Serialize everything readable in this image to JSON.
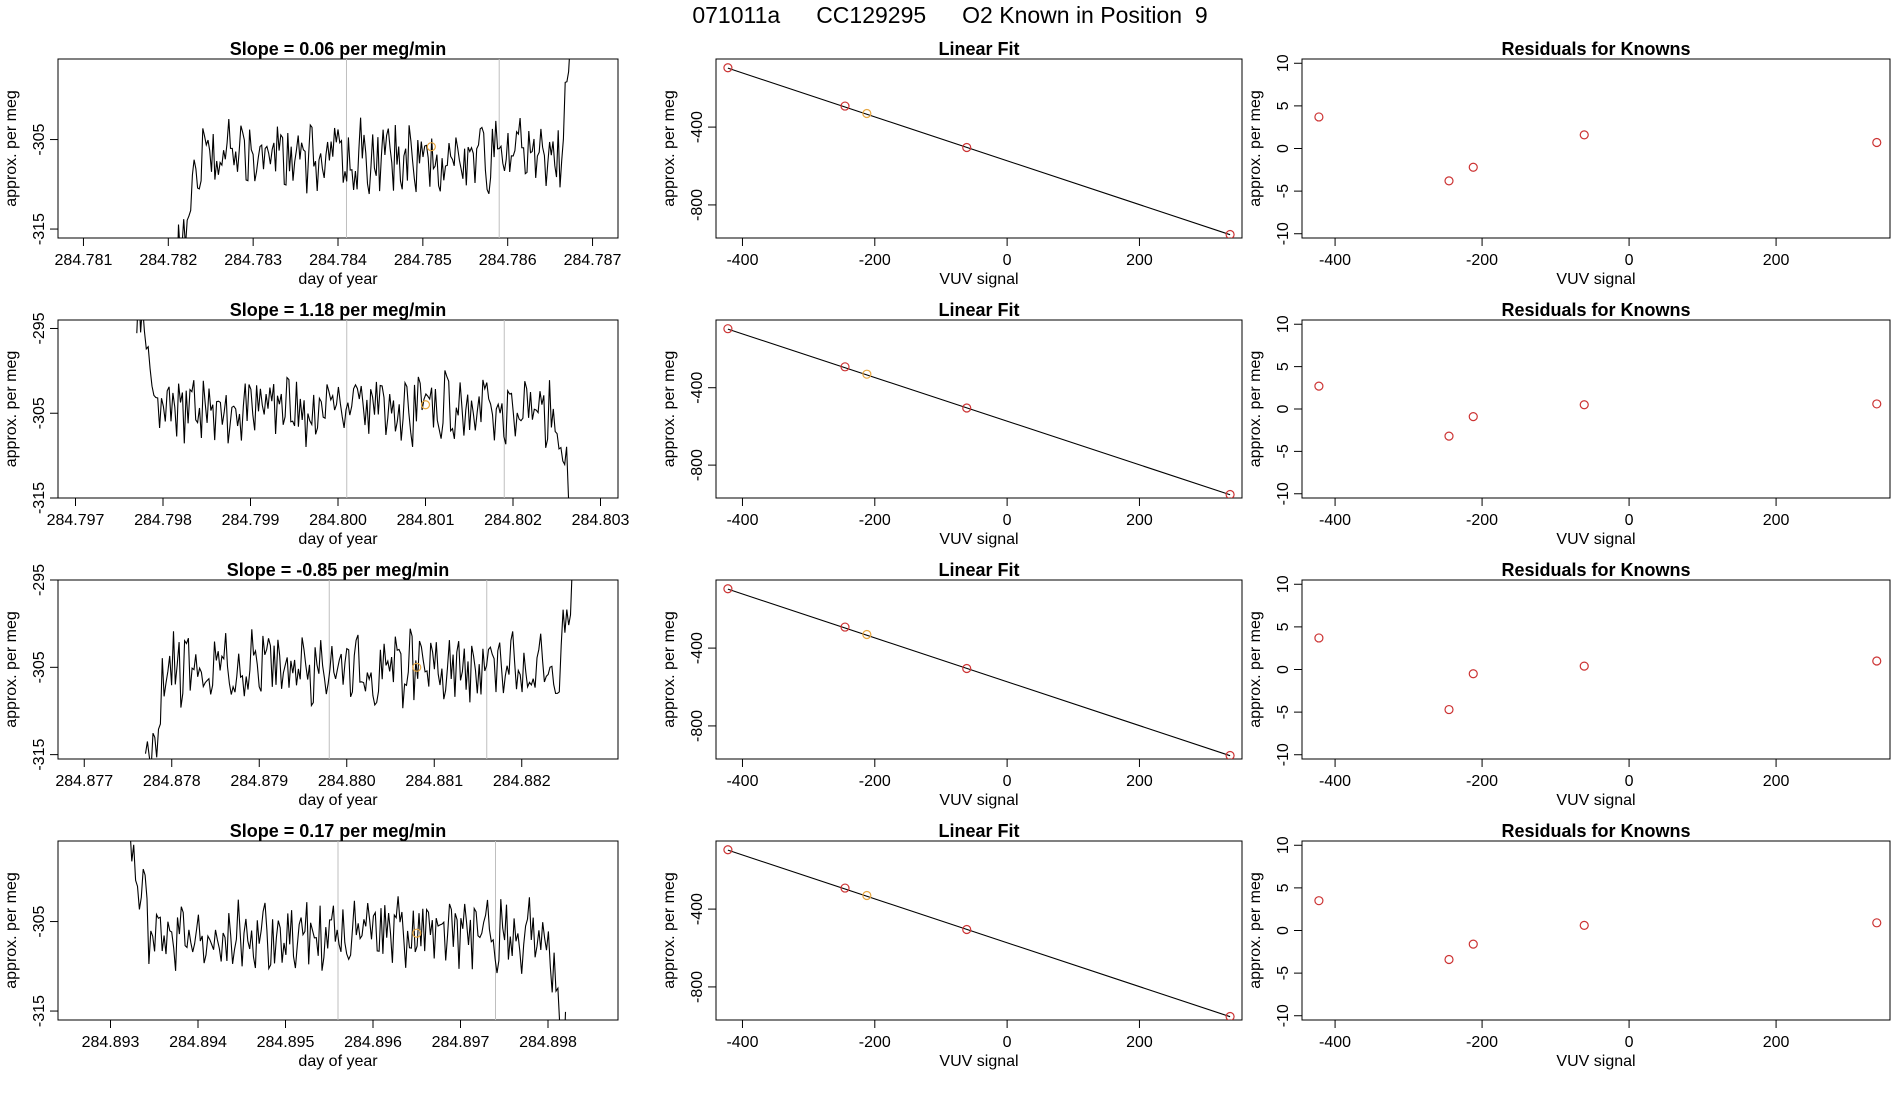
{
  "header": {
    "date_code": "071011a",
    "cylinder": "CC129295",
    "description": "O2 Known in Position  9"
  },
  "colors": {
    "trace": "#000000",
    "known_point": "#cc3333",
    "current_point": "#e6a640",
    "marker_line": "#bfbfbf",
    "fit_line": "#000000"
  },
  "rows": [
    {
      "slope_label": "Slope =  0.06  per meg/min",
      "fit_title": "Linear Fit",
      "resid_title": "Residuals for Knowns"
    },
    {
      "slope_label": "Slope =  1.18  per meg/min",
      "fit_title": "Linear Fit",
      "resid_title": "Residuals for Knowns"
    },
    {
      "slope_label": "Slope =  -0.85  per meg/min",
      "fit_title": "Linear Fit",
      "resid_title": "Residuals for Knowns"
    },
    {
      "slope_label": "Slope =  0.17  per meg/min",
      "fit_title": "Linear Fit",
      "resid_title": "Residuals for Knowns"
    }
  ],
  "chart_data": [
    {
      "type": "line",
      "title": "Slope =  0.06  per meg/min",
      "xlabel": "day of year",
      "ylabel": "approx. per meg",
      "xlim": [
        284.7807,
        284.7873
      ],
      "ylim": [
        -316,
        -296
      ],
      "xticks": [
        "284.781",
        "284.782",
        "284.783",
        "284.784",
        "284.785",
        "284.786",
        "284.787"
      ],
      "yticks": [
        "-305",
        "-315"
      ],
      "ytick_values": [
        -305,
        -315
      ],
      "marker_x": [
        284.7841,
        284.7859
      ],
      "seed": 3,
      "trace_start": 284.7821,
      "trace_end": 284.7868,
      "start_level": -320,
      "base_level": -307,
      "end_level": -292,
      "current_point": {
        "x": 284.7851,
        "y": -305.8
      }
    },
    {
      "type": "line",
      "title": "Slope =  1.18  per meg/min",
      "xlabel": "day of year",
      "ylabel": "approx. per meg",
      "xlim": [
        284.7968,
        284.8032
      ],
      "ylim": [
        -315,
        -294
      ],
      "xticks": [
        "284.797",
        "284.798",
        "284.799",
        "284.800",
        "284.801",
        "284.802",
        "284.803"
      ],
      "yticks": [
        "-295",
        "-305",
        "-315"
      ],
      "ytick_values": [
        -295,
        -305,
        -315
      ],
      "marker_x": [
        284.8001,
        284.8019
      ],
      "seed": 7,
      "trace_start": 284.7977,
      "trace_end": 284.8027,
      "start_level": -293,
      "base_level": -304.5,
      "end_level": -318,
      "current_point": {
        "x": 284.801,
        "y": -304
      }
    },
    {
      "type": "line",
      "title": "Slope =  -0.85  per meg/min",
      "xlabel": "day of year",
      "ylabel": "approx. per meg",
      "xlim": [
        284.8767,
        284.8831
      ],
      "ylim": [
        -315.5,
        -295
      ],
      "xticks": [
        "284.877",
        "284.878",
        "284.879",
        "284.880",
        "284.881",
        "284.882"
      ],
      "yticks": [
        "-295",
        "-305",
        "-315"
      ],
      "ytick_values": [
        -295,
        -305,
        -315
      ],
      "marker_x": [
        284.8798,
        284.8816
      ],
      "seed": 11,
      "trace_start": 284.8777,
      "trace_end": 284.8826,
      "start_level": -318,
      "base_level": -305,
      "end_level": -294,
      "current_point": {
        "x": 284.8808,
        "y": -305
      }
    },
    {
      "type": "line",
      "title": "Slope =  0.17  per meg/min",
      "xlabel": "day of year",
      "ylabel": "approx. per meg",
      "xlim": [
        284.8924,
        284.8988
      ],
      "ylim": [
        -316,
        -296
      ],
      "xticks": [
        "284.893",
        "284.894",
        "284.895",
        "284.896",
        "284.897",
        "284.898"
      ],
      "yticks": [
        "-305",
        "-315"
      ],
      "ytick_values": [
        -305,
        -315
      ],
      "marker_x": [
        284.8956,
        284.8974
      ],
      "seed": 19,
      "trace_start": 284.8932,
      "trace_end": 284.8982,
      "start_level": -296,
      "base_level": -306.5,
      "end_level": -318,
      "current_point": {
        "x": 284.8965,
        "y": -306.3
      }
    },
    {
      "type": "scatter",
      "title": "Linear Fit",
      "xlabel": "VUV signal",
      "ylabel": "approx. per meg",
      "xlim": [
        -440,
        355
      ],
      "ylim": [
        -970,
        -50
      ],
      "xticks": [
        "-400",
        "-200",
        "0",
        "200"
      ],
      "xtick_values": [
        -400,
        -200,
        0,
        200
      ],
      "yticks": [
        "-400",
        "-800"
      ],
      "ytick_values": [
        -400,
        -800
      ],
      "points": [
        {
          "x": -422,
          "y": -95,
          "current": false
        },
        {
          "x": -245,
          "y": -292,
          "current": false
        },
        {
          "x": -212,
          "y": -330,
          "current": true
        },
        {
          "x": -61,
          "y": -505,
          "current": false
        },
        {
          "x": 337,
          "y": -952,
          "current": false
        }
      ],
      "fit_line": [
        [
          -422,
          -97
        ],
        [
          337,
          -953
        ]
      ]
    },
    {
      "type": "scatter",
      "title": "Linear Fit",
      "xlabel": "VUV signal",
      "ylabel": "approx. per meg",
      "xlim": [
        -440,
        355
      ],
      "ylim": [
        -970,
        -50
      ],
      "xticks": [
        "-400",
        "-200",
        "0",
        "200"
      ],
      "xtick_values": [
        -400,
        -200,
        0,
        200
      ],
      "yticks": [
        "-400",
        "-800"
      ],
      "ytick_values": [
        -400,
        -800
      ],
      "points": [
        {
          "x": -422,
          "y": -95,
          "current": false
        },
        {
          "x": -245,
          "y": -292,
          "current": false
        },
        {
          "x": -212,
          "y": -330,
          "current": true
        },
        {
          "x": -61,
          "y": -505,
          "current": false
        },
        {
          "x": 337,
          "y": -952,
          "current": false
        }
      ],
      "fit_line": [
        [
          -422,
          -97
        ],
        [
          337,
          -953
        ]
      ]
    },
    {
      "type": "scatter",
      "title": "Linear Fit",
      "xlabel": "VUV signal",
      "ylabel": "approx. per meg",
      "xlim": [
        -440,
        355
      ],
      "ylim": [
        -970,
        -50
      ],
      "xticks": [
        "-400",
        "-200",
        "0",
        "200"
      ],
      "xtick_values": [
        -400,
        -200,
        0,
        200
      ],
      "yticks": [
        "-400",
        "-800"
      ],
      "ytick_values": [
        -400,
        -800
      ],
      "points": [
        {
          "x": -422,
          "y": -95,
          "current": false
        },
        {
          "x": -245,
          "y": -292,
          "current": false
        },
        {
          "x": -212,
          "y": -330,
          "current": true
        },
        {
          "x": -61,
          "y": -505,
          "current": false
        },
        {
          "x": 337,
          "y": -952,
          "current": false
        }
      ],
      "fit_line": [
        [
          -422,
          -97
        ],
        [
          337,
          -953
        ]
      ]
    },
    {
      "type": "scatter",
      "title": "Linear Fit",
      "xlabel": "VUV signal",
      "ylabel": "approx. per meg",
      "xlim": [
        -440,
        355
      ],
      "ylim": [
        -970,
        -50
      ],
      "xticks": [
        "-400",
        "-200",
        "0",
        "200"
      ],
      "xtick_values": [
        -400,
        -200,
        0,
        200
      ],
      "yticks": [
        "-400",
        "-800"
      ],
      "ytick_values": [
        -400,
        -800
      ],
      "points": [
        {
          "x": -422,
          "y": -95,
          "current": false
        },
        {
          "x": -245,
          "y": -292,
          "current": false
        },
        {
          "x": -212,
          "y": -330,
          "current": true
        },
        {
          "x": -61,
          "y": -505,
          "current": false
        },
        {
          "x": 337,
          "y": -952,
          "current": false
        }
      ],
      "fit_line": [
        [
          -422,
          -97
        ],
        [
          337,
          -953
        ]
      ]
    },
    {
      "type": "scatter",
      "title": "Residuals for Knowns",
      "xlabel": "VUV signal",
      "ylabel": "approx. per meg",
      "xlim": [
        -445,
        355
      ],
      "ylim": [
        -10.5,
        10.5
      ],
      "xticks": [
        "-400",
        "-200",
        "0",
        "200"
      ],
      "xtick_values": [
        -400,
        -200,
        0,
        200
      ],
      "yticks": [
        "10",
        "5",
        "0",
        "-5",
        "-10"
      ],
      "ytick_values": [
        10,
        5,
        0,
        -5,
        -10
      ],
      "points": [
        {
          "x": -422,
          "y": 3.7
        },
        {
          "x": -245,
          "y": -3.8
        },
        {
          "x": -212,
          "y": -2.2
        },
        {
          "x": -61,
          "y": 1.6
        },
        {
          "x": 337,
          "y": 0.7
        }
      ]
    },
    {
      "type": "scatter",
      "title": "Residuals for Knowns",
      "xlabel": "VUV signal",
      "ylabel": "approx. per meg",
      "xlim": [
        -445,
        355
      ],
      "ylim": [
        -10.5,
        10.5
      ],
      "xticks": [
        "-400",
        "-200",
        "0",
        "200"
      ],
      "xtick_values": [
        -400,
        -200,
        0,
        200
      ],
      "yticks": [
        "10",
        "5",
        "0",
        "-5",
        "-10"
      ],
      "ytick_values": [
        10,
        5,
        0,
        -5,
        -10
      ],
      "points": [
        {
          "x": -422,
          "y": 2.7
        },
        {
          "x": -245,
          "y": -3.2
        },
        {
          "x": -212,
          "y": -0.9
        },
        {
          "x": -61,
          "y": 0.5
        },
        {
          "x": 337,
          "y": 0.6
        }
      ]
    },
    {
      "type": "scatter",
      "title": "Residuals for Knowns",
      "xlabel": "VUV signal",
      "ylabel": "approx. per meg",
      "xlim": [
        -445,
        355
      ],
      "ylim": [
        -10.5,
        10.5
      ],
      "xticks": [
        "-400",
        "-200",
        "0",
        "200"
      ],
      "xtick_values": [
        -400,
        -200,
        0,
        200
      ],
      "yticks": [
        "10",
        "5",
        "0",
        "-5",
        "-10"
      ],
      "ytick_values": [
        10,
        5,
        0,
        -5,
        -10
      ],
      "points": [
        {
          "x": -422,
          "y": 3.7
        },
        {
          "x": -245,
          "y": -4.7
        },
        {
          "x": -212,
          "y": -0.5
        },
        {
          "x": -61,
          "y": 0.4
        },
        {
          "x": 337,
          "y": 1.0
        }
      ]
    },
    {
      "type": "scatter",
      "title": "Residuals for Knowns",
      "xlabel": "VUV signal",
      "ylabel": "approx. per meg",
      "xlim": [
        -445,
        355
      ],
      "ylim": [
        -10.5,
        10.5
      ],
      "xticks": [
        "-400",
        "-200",
        "0",
        "200"
      ],
      "xtick_values": [
        -400,
        -200,
        0,
        200
      ],
      "yticks": [
        "10",
        "5",
        "0",
        "-5",
        "-10"
      ],
      "ytick_values": [
        10,
        5,
        0,
        -5,
        -10
      ],
      "points": [
        {
          "x": -422,
          "y": 3.5
        },
        {
          "x": -245,
          "y": -3.4
        },
        {
          "x": -212,
          "y": -1.6
        },
        {
          "x": -61,
          "y": 0.6
        },
        {
          "x": 337,
          "y": 0.9
        }
      ]
    }
  ]
}
